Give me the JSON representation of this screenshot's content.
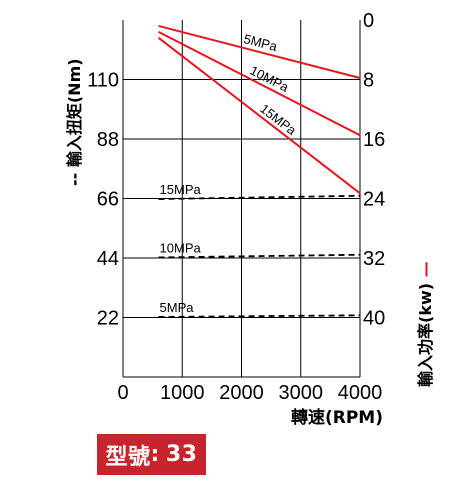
{
  "chart_data": {
    "type": "line",
    "title": "",
    "xlabel": "轉速(RPM)",
    "x_ticks": [
      "0",
      "1000",
      "2000",
      "3000",
      "4000"
    ],
    "xlim": [
      0,
      4000
    ],
    "left_axis": {
      "label": "輸入扭矩(Nm)",
      "marker": "--",
      "ticks": [
        "110",
        "88",
        "66",
        "44",
        "22"
      ],
      "ylim": [
        0,
        132
      ]
    },
    "right_axis": {
      "label": "輸入功率(kw)",
      "marker": "—",
      "ticks": [
        "0",
        "8",
        "16",
        "24",
        "32",
        "40"
      ],
      "ylim": [
        0,
        48
      ],
      "inverted": true
    },
    "grid": true,
    "series": [
      {
        "name": "5MPa",
        "axis": "right",
        "style": "solid",
        "color": "#e8141e",
        "x": [
          600,
          4000
        ],
        "y": [
          0.8,
          7.8
        ]
      },
      {
        "name": "10MPa",
        "axis": "right",
        "style": "solid",
        "color": "#e8141e",
        "x": [
          600,
          4000
        ],
        "y": [
          1.6,
          15.5
        ]
      },
      {
        "name": "15MPa",
        "axis": "right",
        "style": "solid",
        "color": "#e8141e",
        "x": [
          600,
          4000
        ],
        "y": [
          2.4,
          23.3
        ]
      },
      {
        "name": "15MPa",
        "axis": "left",
        "style": "dashed",
        "color": "#000000",
        "x": [
          600,
          4000
        ],
        "y": [
          65.8,
          67.0
        ]
      },
      {
        "name": "10MPa",
        "axis": "left",
        "style": "dashed",
        "color": "#000000",
        "x": [
          600,
          4000
        ],
        "y": [
          44.2,
          45.2
        ]
      },
      {
        "name": "5MPa",
        "axis": "left",
        "style": "dashed",
        "color": "#000000",
        "x": [
          600,
          4000
        ],
        "y": [
          22.2,
          22.8
        ]
      }
    ]
  },
  "model": {
    "label": "型號",
    "value": "33",
    "color": "#c8242c"
  }
}
